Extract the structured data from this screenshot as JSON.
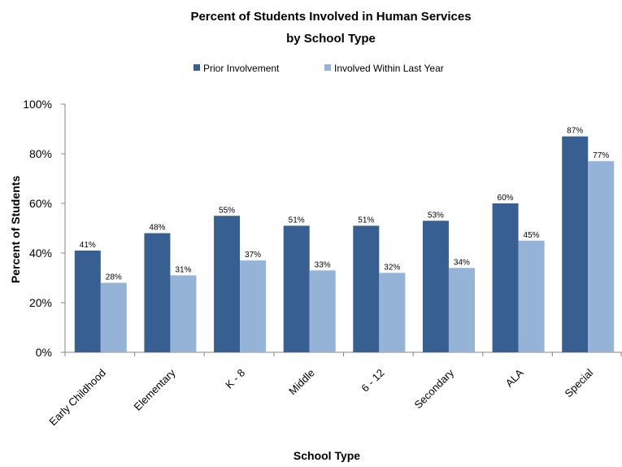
{
  "chart_data": {
    "type": "bar",
    "title_lines": [
      "Percent of  Students Involved in Human Services",
      "by School Type"
    ],
    "xlabel": "School Type",
    "ylabel": "Percent of Students",
    "ylim": [
      0,
      100
    ],
    "yticks": [
      0,
      20,
      40,
      60,
      80,
      100
    ],
    "ytick_labels": [
      "0%",
      "20%",
      "40%",
      "60%",
      "80%",
      "100%"
    ],
    "grid": false,
    "legend_position": "top",
    "categories": [
      "Early Childhood",
      "Elementary",
      "K - 8",
      "Middle",
      "6 - 12",
      "Secondary",
      "ALA",
      "Special"
    ],
    "series": [
      {
        "name": "Prior Involvement",
        "color": "#385F91",
        "values": [
          41,
          48,
          55,
          51,
          51,
          53,
          60,
          87
        ],
        "labels": [
          "41%",
          "48%",
          "55%",
          "51%",
          "51%",
          "53%",
          "60%",
          "87%"
        ]
      },
      {
        "name": "Involved Within Last Year",
        "color": "#95B3D7",
        "values": [
          28,
          31,
          37,
          33,
          32,
          34,
          45,
          77
        ],
        "labels": [
          "28%",
          "31%",
          "37%",
          "33%",
          "32%",
          "34%",
          "45%",
          "77%"
        ]
      }
    ]
  }
}
